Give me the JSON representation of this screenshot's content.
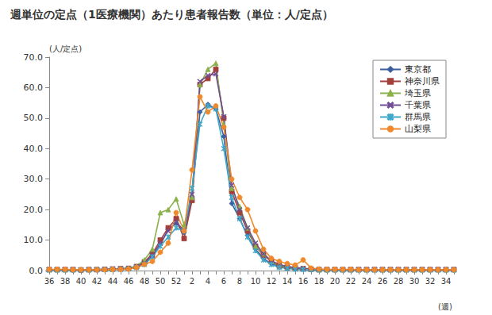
{
  "chart_data": {
    "type": "line",
    "title": "週単位の定点（1医療機関）あたり患者報告数（単位：人/定点）",
    "y_label": "(人/定点)",
    "x_label": "(週)",
    "categories": [
      "36",
      null,
      "38",
      null,
      "40",
      null,
      "42",
      null,
      "44",
      null,
      "46",
      null,
      "48",
      null,
      "50",
      null,
      "52",
      null,
      "2",
      null,
      "4",
      null,
      "6",
      null,
      "8",
      null,
      "10",
      null,
      "12",
      null,
      "14",
      null,
      "16",
      null,
      "18",
      null,
      "20",
      null,
      "22",
      null,
      "24",
      null,
      "26",
      null,
      "28",
      null,
      "30",
      null,
      "32",
      null,
      "34",
      null
    ],
    "ylim": [
      0,
      70
    ],
    "yticks": [
      {
        "value": 0,
        "label": "0.0"
      },
      {
        "value": 10,
        "label": "10.0"
      },
      {
        "value": 20,
        "label": "20.0"
      },
      {
        "value": 30,
        "label": "30.0"
      },
      {
        "value": 40,
        "label": "40.0"
      },
      {
        "value": 50,
        "label": "50.0"
      },
      {
        "value": 60,
        "label": "60.0"
      },
      {
        "value": 70,
        "label": "70.0"
      }
    ],
    "grid": false,
    "legend": "upper right",
    "series": [
      {
        "name": "東京都",
        "color": "#3b5fa0",
        "marker": "diamond",
        "values": [
          0.3,
          0.3,
          0.3,
          0.2,
          0.2,
          0.3,
          0.3,
          0.4,
          0.5,
          0.6,
          0.8,
          1.2,
          2.3,
          4.5,
          8.5,
          13.5,
          15.5,
          12.5,
          24.0,
          52.0,
          54.5,
          53.0,
          44.0,
          22.0,
          17.0,
          11.5,
          7.0,
          4.0,
          2.2,
          1.3,
          0.9,
          0.6,
          0.5,
          0.4,
          0.3,
          0.3,
          0.3,
          0.3,
          0.3,
          0.3,
          0.3,
          0.3,
          0.3,
          0.3,
          0.3,
          0.3,
          0.3,
          0.3,
          0.3,
          0.3,
          0.3,
          0.3
        ]
      },
      {
        "name": "神奈川県",
        "color": "#a2403c",
        "marker": "square",
        "values": [
          0.3,
          0.3,
          0.3,
          0.3,
          0.2,
          0.3,
          0.3,
          0.4,
          0.5,
          0.6,
          0.7,
          1.3,
          2.8,
          5.5,
          10.0,
          14.0,
          17.0,
          10.5,
          23.0,
          61.0,
          63.0,
          66.0,
          50.0,
          26.0,
          19.0,
          13.0,
          8.0,
          5.0,
          3.0,
          1.5,
          1.0,
          0.8,
          0.6,
          0.4,
          0.3,
          0.3,
          0.3,
          0.3,
          0.3,
          0.3,
          0.3,
          0.3,
          0.3,
          0.3,
          0.3,
          0.3,
          0.3,
          0.3,
          0.3,
          0.3,
          0.3,
          0.3
        ]
      },
      {
        "name": "埼玉県",
        "color": "#8cb04b",
        "marker": "triangle",
        "values": [
          0.3,
          0.3,
          0.3,
          0.3,
          0.3,
          0.3,
          0.4,
          0.4,
          0.5,
          0.6,
          0.8,
          1.5,
          3.5,
          7.0,
          19.0,
          20.0,
          23.5,
          15.0,
          24.0,
          61.0,
          66.0,
          68.0,
          48.0,
          27.0,
          21.0,
          14.0,
          8.0,
          5.5,
          3.0,
          1.8,
          1.2,
          1.0,
          0.7,
          0.5,
          0.3,
          0.3,
          0.3,
          0.3,
          0.3,
          0.3,
          0.3,
          0.3,
          0.3,
          0.3,
          0.3,
          0.3,
          0.3,
          0.3,
          0.3,
          0.3,
          0.3,
          0.3
        ]
      },
      {
        "name": "千葉県",
        "color": "#6f4e96",
        "marker": "x",
        "values": [
          0.3,
          0.3,
          0.3,
          0.3,
          0.2,
          0.3,
          0.3,
          0.4,
          0.5,
          0.5,
          0.6,
          1.2,
          2.5,
          5.0,
          9.0,
          13.0,
          16.0,
          13.0,
          25.0,
          62.0,
          64.0,
          64.5,
          50.5,
          28.0,
          20.0,
          14.0,
          9.0,
          5.5,
          3.2,
          2.0,
          1.3,
          1.0,
          0.7,
          0.5,
          0.3,
          0.3,
          0.3,
          0.3,
          0.3,
          0.3,
          0.3,
          0.3,
          0.3,
          0.3,
          0.3,
          0.3,
          0.3,
          0.3,
          0.3,
          0.3,
          0.3,
          0.3
        ]
      },
      {
        "name": "群馬県",
        "color": "#40a8c9",
        "marker": "star",
        "values": [
          0.2,
          0.2,
          0.2,
          0.2,
          0.2,
          0.2,
          0.3,
          0.3,
          0.4,
          0.4,
          0.5,
          1.0,
          2.0,
          4.5,
          8.0,
          11.0,
          14.0,
          13.0,
          27.0,
          48.0,
          54.0,
          53.0,
          40.0,
          24.0,
          17.0,
          11.0,
          6.5,
          3.5,
          2.0,
          1.0,
          0.7,
          0.4,
          0.3,
          0.3,
          0.2,
          0.2,
          0.2,
          0.2,
          0.2,
          0.2,
          0.2,
          0.2,
          0.2,
          0.2,
          0.2,
          0.2,
          0.2,
          0.2,
          0.2,
          0.2,
          0.2,
          0.2
        ]
      },
      {
        "name": "山梨県",
        "color": "#f0892c",
        "marker": "circle",
        "values": [
          0.4,
          0.4,
          0.4,
          0.3,
          0.3,
          0.3,
          0.3,
          0.3,
          0.4,
          0.4,
          0.5,
          1.0,
          2.0,
          3.0,
          6.0,
          9.0,
          19.0,
          13.0,
          33.0,
          57.0,
          52.0,
          54.0,
          47.0,
          30.0,
          24.0,
          20.0,
          13.0,
          7.0,
          4.0,
          3.0,
          2.3,
          1.8,
          3.5,
          0.8,
          0.5,
          0.4,
          0.4,
          0.4,
          0.4,
          0.3,
          0.3,
          0.3,
          0.3,
          0.3,
          0.3,
          0.3,
          0.3,
          0.3,
          0.3,
          0.3,
          0.3,
          0.3
        ]
      }
    ]
  }
}
